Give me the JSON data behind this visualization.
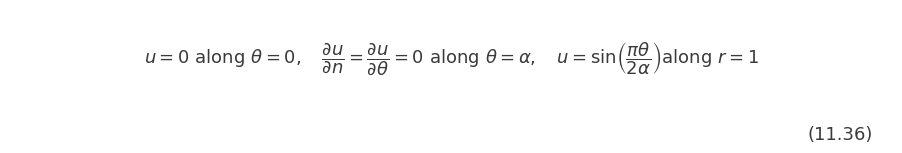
{
  "background_color": "#ffffff",
  "equation": "u = 0 \\text{ along } \\theta = 0, \\quad \\frac{\\partial u}{\\partial n} = \\frac{\\partial u}{\\partial \\theta} = 0 \\text{ along } \\theta = \\alpha, \\quad u = \\sin\\!\\left(\\frac{\\pi\\theta}{2\\alpha}\\right) \\text{ along } r = 1",
  "label": "(11.36)",
  "figsize": [
    9.03,
    1.53
  ],
  "dpi": 100,
  "text_color": "#3a3a3a",
  "font_size": 13
}
